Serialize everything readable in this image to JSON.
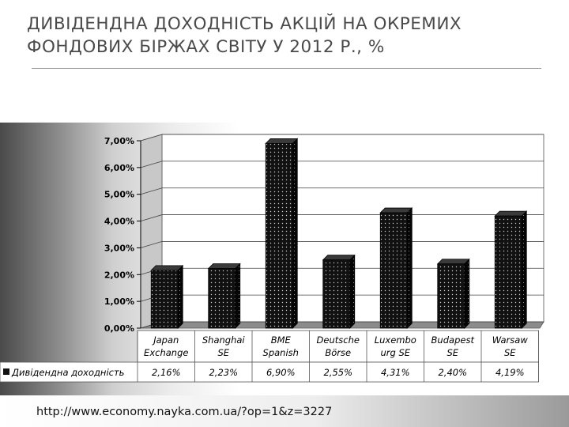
{
  "slide": {
    "title": "ДИВІДЕНДНА ДОХОДНІСТЬ АКЦІЙ НА ОКРЕМИХ ФОНДОВИХ БІРЖАХ СВІТУ У 2012 Р., %",
    "source_url": "http://www.economy.nayka.com.ua/?op=1&z=3227"
  },
  "chart_data": {
    "type": "bar",
    "categories": [
      "Japan\nExchange",
      "Shanghai\nSE",
      "BME\nSpanish",
      "Deutsche\nBörse",
      "Luxembo\nurg SE",
      "Budapest\nSE",
      "Warsaw\nSE"
    ],
    "series": [
      {
        "name": "Дивіденднa доходність",
        "values": [
          2.16,
          2.23,
          6.9,
          2.55,
          4.31,
          2.4,
          4.19
        ]
      }
    ],
    "value_labels": [
      "2,16%",
      "2,23%",
      "6,90%",
      "2,55%",
      "4,31%",
      "2,40%",
      "4,19%"
    ],
    "y_ticks": [
      0,
      1,
      2,
      3,
      4,
      5,
      6,
      7
    ],
    "y_tick_labels": [
      "0,00%",
      "1,00%",
      "2,00%",
      "3,00%",
      "4,00%",
      "5,00%",
      "6,00%",
      "7,00%"
    ],
    "ylim": [
      0,
      7
    ],
    "grid": true,
    "bar_style": "3d",
    "bar_color": "#111111",
    "legend_placement": "data-table-left",
    "data_table": true
  }
}
